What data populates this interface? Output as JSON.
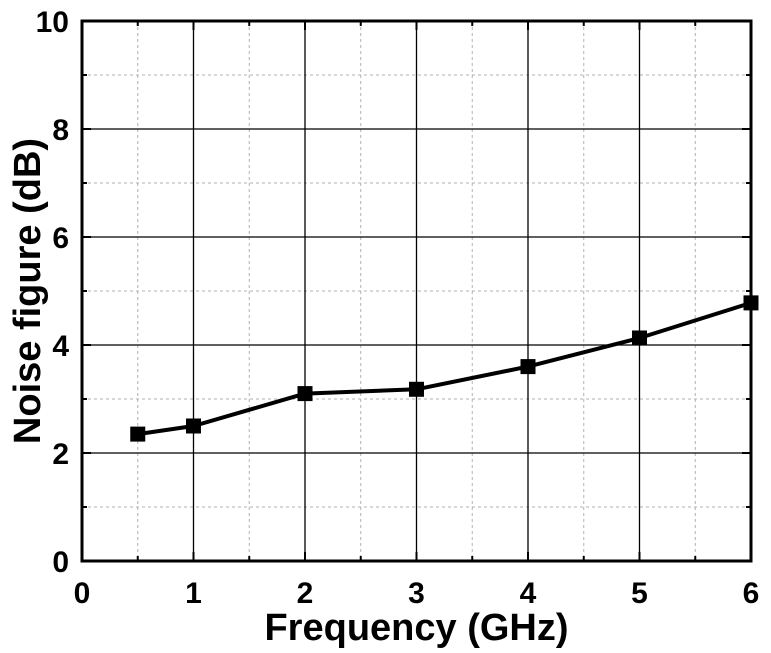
{
  "chart_data": {
    "type": "line",
    "xlabel": "Frequency (GHz)",
    "ylabel": "Noise figure (dB)",
    "xlim": [
      0,
      6
    ],
    "ylim": [
      0,
      10
    ],
    "xticks": [
      "0",
      "1",
      "2",
      "3",
      "4",
      "5",
      "6"
    ],
    "yticks": [
      "0",
      "2",
      "4",
      "6",
      "8",
      "10"
    ],
    "grid": true,
    "series": [
      {
        "x": [
          0.5,
          1,
          2,
          3,
          4,
          5,
          6
        ],
        "values": [
          2.35,
          2.5,
          3.1,
          3.18,
          3.6,
          4.13,
          4.78
        ],
        "color": "#000000",
        "marker": "square"
      }
    ]
  }
}
